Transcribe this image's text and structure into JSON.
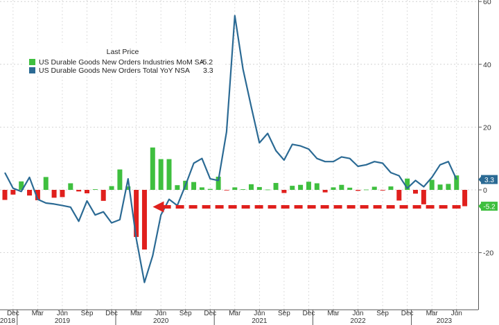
{
  "chart_data": {
    "type": "bar+line",
    "legend": {
      "title": "Last Price",
      "placement": "top-left",
      "entries": [
        {
          "label": "US Durable Goods New Orders Industries MoM SA",
          "last": "-5.2",
          "color": "#3fbf3f"
        },
        {
          "label": "US Durable Goods New Orders Total YoY NSA",
          "last": "3.3",
          "color": "#2b6a94"
        }
      ]
    },
    "y_axis": {
      "side": "right",
      "ylim": [
        -38,
        60
      ],
      "ticks": [
        "60",
        "40",
        "20",
        "0",
        "-20"
      ],
      "tick_values": [
        60,
        40,
        20,
        0,
        -20
      ]
    },
    "grid": "dashed",
    "x_axis": {
      "month_ticks": [
        {
          "label": "Dec",
          "index": 1
        },
        {
          "label": "Mar",
          "index": 4
        },
        {
          "label": "Jun",
          "index": 7
        },
        {
          "label": "Sep",
          "index": 10
        },
        {
          "label": "Dec",
          "index": 13
        },
        {
          "label": "Mar",
          "index": 16
        },
        {
          "label": "Jun",
          "index": 19
        },
        {
          "label": "Sep",
          "index": 22
        },
        {
          "label": "Dec",
          "index": 25
        },
        {
          "label": "Mar",
          "index": 28
        },
        {
          "label": "Jun",
          "index": 31
        },
        {
          "label": "Sep",
          "index": 34
        },
        {
          "label": "Dec",
          "index": 37
        },
        {
          "label": "Mar",
          "index": 40
        },
        {
          "label": "Jun",
          "index": 43
        },
        {
          "label": "Sep",
          "index": 46
        },
        {
          "label": "Dec",
          "index": 49
        },
        {
          "label": "Mar",
          "index": 52
        },
        {
          "label": "Jun",
          "index": 55
        }
      ],
      "year_labels": [
        {
          "label": "2018",
          "index": -0.5
        },
        {
          "label": "2019",
          "index": 7
        },
        {
          "label": "2020",
          "index": 19
        },
        {
          "label": "2021",
          "index": 31
        },
        {
          "label": "2022",
          "index": 43
        },
        {
          "label": "2023",
          "index": 53.5
        }
      ],
      "year_boundaries": [
        1.5,
        13.5,
        25.5,
        37.5,
        49.5
      ]
    },
    "series": [
      {
        "name": "US Durable Goods New Orders Industries MoM SA",
        "kind": "bar",
        "color_positive": "#3fbf3f",
        "color_negative": "#e0201d",
        "start": "2018-10",
        "values": [
          -3.2,
          -1.5,
          2.7,
          -1.8,
          -3.3,
          4.1,
          -2.5,
          -2.3,
          2.1,
          -0.5,
          -1.1,
          0.2,
          -3.5,
          1.2,
          6.5,
          1.1,
          -15.0,
          -19.0,
          13.5,
          9.8,
          9.8,
          1.5,
          2.9,
          2.5,
          0.8,
          0.3,
          4.2,
          -0.1,
          0.8,
          0.2,
          1.8,
          0.9,
          0.1,
          2.2,
          -1.0,
          1.3,
          1.6,
          2.6,
          2.1,
          -0.8,
          0.8,
          1.6,
          0.7,
          -0.3,
          0.1,
          1.0,
          -0.2,
          1.1,
          -3.4,
          3.6,
          -1.2,
          -4.6,
          3.2,
          1.7,
          1.9,
          4.6,
          -5.2
        ]
      },
      {
        "name": "US Durable Goods New Orders Total YoY NSA",
        "kind": "line",
        "color": "#2b6a94",
        "start": "2018-10",
        "values": [
          5.5,
          0.5,
          -0.5,
          4.0,
          -3.0,
          -4.2,
          -4.5,
          -5.0,
          -5.5,
          -10.0,
          -3.5,
          -8.0,
          -7.0,
          -10.5,
          -9.5,
          3.5,
          -15.5,
          -29.5,
          -21.0,
          -8.0,
          -3.0,
          -5.0,
          1.5,
          8.5,
          10.0,
          3.5,
          3.0,
          18.5,
          55.5,
          38.5,
          26.5,
          15.0,
          18.0,
          12.5,
          9.5,
          14.5,
          14.0,
          13.0,
          10.0,
          9.0,
          9.0,
          10.5,
          10.0,
          7.5,
          8.0,
          9.0,
          8.5,
          5.5,
          4.5,
          0.5,
          3.0,
          1.0,
          4.0,
          8.0,
          9.0,
          3.3
        ]
      }
    ],
    "markers": [
      {
        "label": "3.3",
        "value": 3.3,
        "color": "#2b6a94"
      },
      {
        "label": "-5.2",
        "value": -5.2,
        "color": "#3fbf3f"
      }
    ],
    "annotation": {
      "type": "dashed-arrow",
      "color": "#e0201d",
      "value": -5.2,
      "from_index": 56,
      "to_index": 17
    }
  }
}
